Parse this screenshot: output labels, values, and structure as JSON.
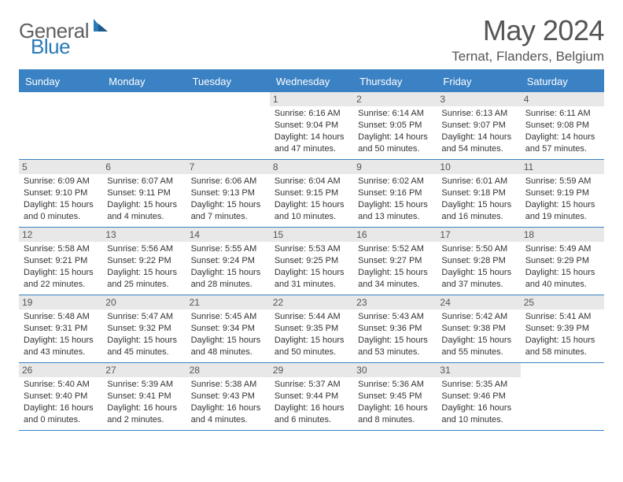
{
  "logo": {
    "general": "General",
    "blue": "Blue"
  },
  "title": "May 2024",
  "location": "Ternat, Flanders, Belgium",
  "headerColor": "#3b82c4",
  "dayNames": [
    "Sunday",
    "Monday",
    "Tuesday",
    "Wednesday",
    "Thursday",
    "Friday",
    "Saturday"
  ],
  "style": {
    "pageWidth": 792,
    "pageHeight": 612,
    "fontFamily": "Arial",
    "cellBg": "#ffffff",
    "dayNumBg": "#e8e8e8",
    "borderColor": "#3b82c4",
    "textColor": "#333333"
  },
  "weeks": [
    [
      null,
      null,
      null,
      {
        "n": "1",
        "sr": "Sunrise: 6:16 AM",
        "ss": "Sunset: 9:04 PM",
        "dl": "Daylight: 14 hours and 47 minutes."
      },
      {
        "n": "2",
        "sr": "Sunrise: 6:14 AM",
        "ss": "Sunset: 9:05 PM",
        "dl": "Daylight: 14 hours and 50 minutes."
      },
      {
        "n": "3",
        "sr": "Sunrise: 6:13 AM",
        "ss": "Sunset: 9:07 PM",
        "dl": "Daylight: 14 hours and 54 minutes."
      },
      {
        "n": "4",
        "sr": "Sunrise: 6:11 AM",
        "ss": "Sunset: 9:08 PM",
        "dl": "Daylight: 14 hours and 57 minutes."
      }
    ],
    [
      {
        "n": "5",
        "sr": "Sunrise: 6:09 AM",
        "ss": "Sunset: 9:10 PM",
        "dl": "Daylight: 15 hours and 0 minutes."
      },
      {
        "n": "6",
        "sr": "Sunrise: 6:07 AM",
        "ss": "Sunset: 9:11 PM",
        "dl": "Daylight: 15 hours and 4 minutes."
      },
      {
        "n": "7",
        "sr": "Sunrise: 6:06 AM",
        "ss": "Sunset: 9:13 PM",
        "dl": "Daylight: 15 hours and 7 minutes."
      },
      {
        "n": "8",
        "sr": "Sunrise: 6:04 AM",
        "ss": "Sunset: 9:15 PM",
        "dl": "Daylight: 15 hours and 10 minutes."
      },
      {
        "n": "9",
        "sr": "Sunrise: 6:02 AM",
        "ss": "Sunset: 9:16 PM",
        "dl": "Daylight: 15 hours and 13 minutes."
      },
      {
        "n": "10",
        "sr": "Sunrise: 6:01 AM",
        "ss": "Sunset: 9:18 PM",
        "dl": "Daylight: 15 hours and 16 minutes."
      },
      {
        "n": "11",
        "sr": "Sunrise: 5:59 AM",
        "ss": "Sunset: 9:19 PM",
        "dl": "Daylight: 15 hours and 19 minutes."
      }
    ],
    [
      {
        "n": "12",
        "sr": "Sunrise: 5:58 AM",
        "ss": "Sunset: 9:21 PM",
        "dl": "Daylight: 15 hours and 22 minutes."
      },
      {
        "n": "13",
        "sr": "Sunrise: 5:56 AM",
        "ss": "Sunset: 9:22 PM",
        "dl": "Daylight: 15 hours and 25 minutes."
      },
      {
        "n": "14",
        "sr": "Sunrise: 5:55 AM",
        "ss": "Sunset: 9:24 PM",
        "dl": "Daylight: 15 hours and 28 minutes."
      },
      {
        "n": "15",
        "sr": "Sunrise: 5:53 AM",
        "ss": "Sunset: 9:25 PM",
        "dl": "Daylight: 15 hours and 31 minutes."
      },
      {
        "n": "16",
        "sr": "Sunrise: 5:52 AM",
        "ss": "Sunset: 9:27 PM",
        "dl": "Daylight: 15 hours and 34 minutes."
      },
      {
        "n": "17",
        "sr": "Sunrise: 5:50 AM",
        "ss": "Sunset: 9:28 PM",
        "dl": "Daylight: 15 hours and 37 minutes."
      },
      {
        "n": "18",
        "sr": "Sunrise: 5:49 AM",
        "ss": "Sunset: 9:29 PM",
        "dl": "Daylight: 15 hours and 40 minutes."
      }
    ],
    [
      {
        "n": "19",
        "sr": "Sunrise: 5:48 AM",
        "ss": "Sunset: 9:31 PM",
        "dl": "Daylight: 15 hours and 43 minutes."
      },
      {
        "n": "20",
        "sr": "Sunrise: 5:47 AM",
        "ss": "Sunset: 9:32 PM",
        "dl": "Daylight: 15 hours and 45 minutes."
      },
      {
        "n": "21",
        "sr": "Sunrise: 5:45 AM",
        "ss": "Sunset: 9:34 PM",
        "dl": "Daylight: 15 hours and 48 minutes."
      },
      {
        "n": "22",
        "sr": "Sunrise: 5:44 AM",
        "ss": "Sunset: 9:35 PM",
        "dl": "Daylight: 15 hours and 50 minutes."
      },
      {
        "n": "23",
        "sr": "Sunrise: 5:43 AM",
        "ss": "Sunset: 9:36 PM",
        "dl": "Daylight: 15 hours and 53 minutes."
      },
      {
        "n": "24",
        "sr": "Sunrise: 5:42 AM",
        "ss": "Sunset: 9:38 PM",
        "dl": "Daylight: 15 hours and 55 minutes."
      },
      {
        "n": "25",
        "sr": "Sunrise: 5:41 AM",
        "ss": "Sunset: 9:39 PM",
        "dl": "Daylight: 15 hours and 58 minutes."
      }
    ],
    [
      {
        "n": "26",
        "sr": "Sunrise: 5:40 AM",
        "ss": "Sunset: 9:40 PM",
        "dl": "Daylight: 16 hours and 0 minutes."
      },
      {
        "n": "27",
        "sr": "Sunrise: 5:39 AM",
        "ss": "Sunset: 9:41 PM",
        "dl": "Daylight: 16 hours and 2 minutes."
      },
      {
        "n": "28",
        "sr": "Sunrise: 5:38 AM",
        "ss": "Sunset: 9:43 PM",
        "dl": "Daylight: 16 hours and 4 minutes."
      },
      {
        "n": "29",
        "sr": "Sunrise: 5:37 AM",
        "ss": "Sunset: 9:44 PM",
        "dl": "Daylight: 16 hours and 6 minutes."
      },
      {
        "n": "30",
        "sr": "Sunrise: 5:36 AM",
        "ss": "Sunset: 9:45 PM",
        "dl": "Daylight: 16 hours and 8 minutes."
      },
      {
        "n": "31",
        "sr": "Sunrise: 5:35 AM",
        "ss": "Sunset: 9:46 PM",
        "dl": "Daylight: 16 hours and 10 minutes."
      },
      null
    ]
  ]
}
